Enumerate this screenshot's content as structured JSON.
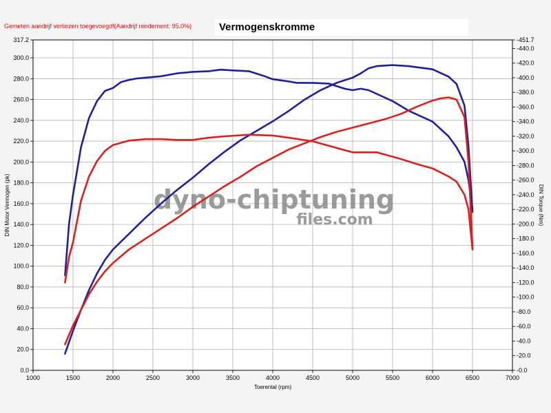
{
  "header": {
    "note": "Gemeten aandrijf verliezen toegevoegd!(Aandrijf rendement: 95.0%)",
    "title": "Vermogenskromme"
  },
  "watermark": {
    "line1": "dyno-chiptuning",
    "line2": "files.com"
  },
  "colors": {
    "tuned": "#1f1f9c",
    "stock": "#dc1f1f",
    "grid": "#b0b0b0"
  },
  "chart_data": {
    "type": "line",
    "title": "Vermogenskromme",
    "xlabel": "Toerental (rpm)",
    "ylabel": "DIN Motor Vermogen (pk)",
    "y2label": "DIN Torque (Nm)",
    "xlim": [
      1000,
      7000
    ],
    "ylim": [
      0,
      317.2
    ],
    "y2lim": [
      0,
      451.7
    ],
    "grid": true,
    "x_ticks": [
      "1000",
      "1500",
      "2000",
      "2500",
      "3000",
      "3500",
      "4000",
      "4500",
      "5000",
      "5500",
      "6000",
      "6500",
      "7000"
    ],
    "y_ticks": [
      "0.0",
      "20.0",
      "40.0",
      "60.0",
      "80.0",
      "100.0",
      "120.0",
      "140.0",
      "160.0",
      "180.0",
      "200.0",
      "220.0",
      "240.0",
      "260.0",
      "280.0",
      "300.0",
      "317.2"
    ],
    "y2_ticks": [
      "0.0",
      "20.0",
      "40.0",
      "60.0",
      "80.0",
      "100.0",
      "120.0",
      "140.0",
      "160.0",
      "180.0",
      "200.0",
      "220.0",
      "240.0",
      "260.0",
      "280.0",
      "300.0",
      "320.0",
      "340.0",
      "360.0",
      "380.0",
      "400.0",
      "420.0",
      "440.0",
      "451.7"
    ],
    "series": [
      {
        "color": "#1f1f9c",
        "axis": "y2",
        "x": [
          1400,
          1450,
          1500,
          1600,
          1700,
          1800,
          1900,
          2000,
          2100,
          2200,
          2300,
          2400,
          2600,
          2800,
          3000,
          3200,
          3350,
          3500,
          3700,
          3900,
          4000,
          4200,
          4300,
          4500,
          4700,
          4900,
          5000,
          5100,
          5200,
          5500,
          5700,
          6000,
          6200,
          6300,
          6400,
          6450,
          6500
        ],
        "y": [
          130,
          200,
          240,
          305,
          345,
          368,
          382,
          386,
          394,
          397,
          399,
          400,
          402,
          406,
          408,
          409,
          411,
          410,
          409,
          402,
          398,
          395,
          393,
          393,
          392,
          385,
          383,
          385,
          383,
          368,
          355,
          340,
          320,
          305,
          285,
          260,
          220
        ]
      },
      {
        "color": "#1f1f9c",
        "axis": "y",
        "x": [
          1400,
          1500,
          1600,
          1700,
          1800,
          1900,
          2000,
          2200,
          2400,
          2600,
          2800,
          3000,
          3200,
          3400,
          3600,
          3800,
          4000,
          4200,
          4400,
          4600,
          4800,
          5000,
          5100,
          5200,
          5300,
          5500,
          5700,
          6000,
          6200,
          6300,
          6400,
          6450,
          6500
        ],
        "y": [
          16,
          38,
          58,
          77,
          93,
          106,
          116,
          131,
          146,
          160,
          173,
          185,
          198,
          210,
          221,
          230,
          239,
          249,
          260,
          269,
          276,
          281,
          285,
          290,
          292,
          293,
          292,
          289,
          282,
          275,
          254,
          215,
          152
        ]
      },
      {
        "color": "#dc1f1f",
        "axis": "y2",
        "x": [
          1400,
          1450,
          1500,
          1600,
          1700,
          1800,
          1900,
          2000,
          2200,
          2400,
          2600,
          2800,
          3000,
          3200,
          3400,
          3700,
          4000,
          4200,
          4500,
          4700,
          5000,
          5100,
          5300,
          5600,
          5800,
          6000,
          6200,
          6300,
          6400,
          6450,
          6500
        ],
        "y": [
          120,
          155,
          175,
          232,
          265,
          286,
          300,
          308,
          314,
          316,
          316,
          315,
          315,
          318,
          320,
          322,
          321,
          318,
          313,
          307,
          298,
          298,
          298,
          289,
          282,
          276,
          265,
          258,
          240,
          220,
          165
        ]
      },
      {
        "color": "#dc1f1f",
        "axis": "y",
        "x": [
          1400,
          1500,
          1600,
          1700,
          1800,
          1900,
          2000,
          2200,
          2400,
          2600,
          2800,
          3000,
          3200,
          3400,
          3600,
          3800,
          4000,
          4200,
          4400,
          4600,
          4800,
          5000,
          5200,
          5400,
          5600,
          5800,
          6000,
          6100,
          6200,
          6300,
          6400,
          6450,
          6500
        ],
        "y": [
          25,
          43,
          58,
          73,
          85,
          95,
          103,
          116,
          126,
          136,
          146,
          157,
          167,
          177,
          186,
          196,
          204,
          212,
          218,
          224,
          229,
          233,
          237,
          241,
          246,
          253,
          259,
          261,
          262,
          260,
          243,
          200,
          118
        ]
      }
    ]
  }
}
